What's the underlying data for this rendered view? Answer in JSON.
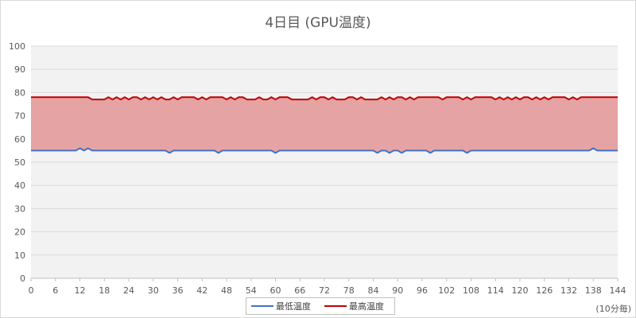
{
  "chart_data": {
    "type": "area",
    "title": "4日目 (GPU温度)",
    "x_unit_label": "(10分毎)",
    "x_range": [
      0,
      144
    ],
    "x_ticks": [
      0,
      6,
      12,
      18,
      24,
      30,
      36,
      42,
      48,
      54,
      60,
      66,
      72,
      78,
      84,
      90,
      96,
      102,
      108,
      114,
      120,
      126,
      132,
      138,
      144
    ],
    "y_range": [
      0,
      100
    ],
    "y_ticks": [
      0,
      10,
      20,
      30,
      40,
      50,
      60,
      70,
      80,
      90,
      100
    ],
    "grid": true,
    "legend_position": "bottom",
    "shading": {
      "between": [
        "最低温度",
        "最高温度"
      ],
      "color": "#e5a3a3"
    },
    "series": [
      {
        "name": "最低温度",
        "color": "#4472c4",
        "values": [
          55,
          55,
          55,
          55,
          55,
          55,
          55,
          55,
          55,
          55,
          55,
          55,
          56,
          55,
          56,
          55,
          55,
          55,
          55,
          55,
          55,
          55,
          55,
          55,
          55,
          55,
          55,
          55,
          55,
          55,
          55,
          55,
          55,
          55,
          54,
          55,
          55,
          55,
          55,
          55,
          55,
          55,
          55,
          55,
          55,
          55,
          54,
          55,
          55,
          55,
          55,
          55,
          55,
          55,
          55,
          55,
          55,
          55,
          55,
          55,
          54,
          55,
          55,
          55,
          55,
          55,
          55,
          55,
          55,
          55,
          55,
          55,
          55,
          55,
          55,
          55,
          55,
          55,
          55,
          55,
          55,
          55,
          55,
          55,
          55,
          54,
          55,
          55,
          54,
          55,
          55,
          54,
          55,
          55,
          55,
          55,
          55,
          55,
          54,
          55,
          55,
          55,
          55,
          55,
          55,
          55,
          55,
          54,
          55,
          55,
          55,
          55,
          55,
          55,
          55,
          55,
          55,
          55,
          55,
          55,
          55,
          55,
          55,
          55,
          55,
          55,
          55,
          55,
          55,
          55,
          55,
          55,
          55,
          55,
          55,
          55,
          55,
          55,
          56,
          55,
          55,
          55,
          55,
          55,
          55
        ]
      },
      {
        "name": "最高温度",
        "color": "#c00000",
        "values": [
          78,
          78,
          78,
          78,
          78,
          78,
          78,
          78,
          78,
          78,
          78,
          78,
          78,
          78,
          78,
          77,
          77,
          77,
          77,
          78,
          77,
          78,
          77,
          78,
          77,
          78,
          78,
          77,
          78,
          77,
          78,
          77,
          78,
          77,
          77,
          78,
          77,
          78,
          78,
          78,
          78,
          77,
          78,
          77,
          78,
          78,
          78,
          78,
          77,
          78,
          77,
          78,
          78,
          77,
          77,
          77,
          78,
          77,
          77,
          78,
          77,
          78,
          78,
          78,
          77,
          77,
          77,
          77,
          77,
          78,
          77,
          78,
          78,
          77,
          78,
          77,
          77,
          77,
          78,
          78,
          77,
          78,
          77,
          77,
          77,
          77,
          78,
          77,
          78,
          77,
          78,
          78,
          77,
          78,
          77,
          78,
          78,
          78,
          78,
          78,
          78,
          77,
          78,
          78,
          78,
          78,
          77,
          78,
          77,
          78,
          78,
          78,
          78,
          78,
          77,
          78,
          77,
          78,
          77,
          78,
          77,
          78,
          78,
          77,
          78,
          77,
          78,
          77,
          78,
          78,
          78,
          78,
          77,
          78,
          77,
          78,
          78,
          78,
          78,
          78,
          78,
          78,
          78,
          78,
          78
        ]
      }
    ]
  }
}
